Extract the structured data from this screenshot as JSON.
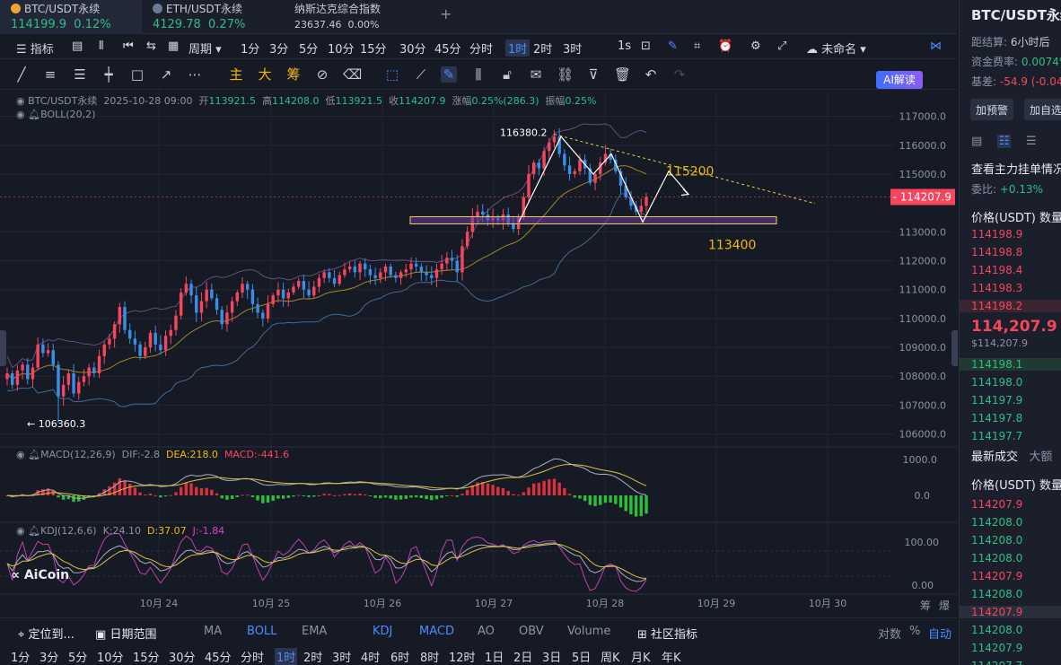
{
  "tabs": [
    {
      "name": "BTC/USDT永续",
      "price": "114199.9",
      "change": "0.12%",
      "color": "#2ebd85"
    },
    {
      "name": "ETH/USDT永续",
      "price": "4129.78",
      "change": "0.27%",
      "color": "#2ebd85"
    },
    {
      "name": "纳斯达克综合指数",
      "price": "23637.46",
      "change": "0.00%",
      "color": "#c8ccd6"
    }
  ],
  "tab_add": "+",
  "toolbar1": {
    "indicator": "指标",
    "period": "周期",
    "intervals": [
      "1分",
      "3分",
      "5分",
      "10分",
      "15分",
      "30分",
      "45分",
      "分时",
      "1时",
      "2时",
      "3时"
    ],
    "selected_interval": "1时",
    "one_s": "1s",
    "unnamed": "未命名",
    "ai": "AI解读"
  },
  "toolbar2": {
    "zhu": "主",
    "da": "大",
    "chou": "筹"
  },
  "info": {
    "symbol": "BTC/USDT永续",
    "datetime": "2025-10-28 09:00",
    "open_label": "开",
    "open": "113921.5",
    "high_label": "高",
    "high": "114208.0",
    "low_label": "低",
    "low": "113921.5",
    "close_label": "收",
    "close": "114207.9",
    "chg_label": "涨幅",
    "chg": "0.25%(286.3)",
    "amp_label": "振幅",
    "amp": "0.25%",
    "boll": "BOLL(20,2)"
  },
  "price_axis": [
    "117000.0",
    "116000.0",
    "115000.0",
    "113000.0",
    "112000.0",
    "111000.0",
    "110000.0",
    "109000.0",
    "108000.0",
    "107000.0",
    "106000.0"
  ],
  "current_price_tag": "114207.9",
  "annotations": {
    "high": "116380.2",
    "low": "← 106360.3",
    "target": "115200",
    "support": "113400"
  },
  "macd": {
    "label": "MACD(12,26,9)",
    "dif": "DIF:-2.8",
    "dea": "DEA:218.0",
    "macd": "MACD:-441.6",
    "axis": [
      "1000.0",
      "0.0"
    ]
  },
  "kdj": {
    "label": "KDJ(12,6,6)",
    "k": "K:24.10",
    "d": "D:37.07",
    "j": "J:-1.84",
    "axis": [
      "100.00",
      "0.00"
    ]
  },
  "dates": [
    "10月 24",
    "10月 25",
    "10月 26",
    "10月 27",
    "10月 28",
    "10月 29",
    "10月 30"
  ],
  "axis_corner": {
    "a": "筹",
    "b": "爆"
  },
  "logo": "AiCoin",
  "bottombar": {
    "locate": "定位到...",
    "range": "日期范围",
    "ma": "MA",
    "boll": "BOLL",
    "ema": "EMA",
    "kdj": "KDJ",
    "macd": "MACD",
    "ao": "AO",
    "obv": "OBV",
    "volume": "Volume",
    "community": "社区指标",
    "log": "对数",
    "pct": "%",
    "auto": "自动"
  },
  "timeframes": [
    "1分",
    "3分",
    "5分",
    "10分",
    "15分",
    "30分",
    "45分",
    "分时",
    "1时",
    "2时",
    "3时",
    "4时",
    "6时",
    "8时",
    "12时",
    "1日",
    "2日",
    "3日",
    "5日",
    "周K",
    "月K",
    "年K"
  ],
  "selected_timeframe": "1时",
  "right_panel": {
    "title": "BTC/USDT永续",
    "settle_label": "距结算:",
    "settle": "6小时后",
    "funding_label": "资金费率:",
    "funding": "0.0074%",
    "basis_label": "基差:",
    "basis": "-54.9 (-0.04",
    "btn_alert": "加预警",
    "btn_fav": "加自选",
    "orderbook_title": "查看主力挂单情况",
    "ratio_label": "委比:",
    "ratio": "+0.13%",
    "header_price": "价格(USDT)",
    "header_qty": "数量",
    "asks": [
      "114198.9",
      "114198.8",
      "114198.4",
      "114198.3",
      "114198.2"
    ],
    "last_price": "114,207.9",
    "last_usd": "$114,207.9",
    "bids": [
      "114198.1",
      "114198.0",
      "114197.9",
      "114197.8",
      "114197.7"
    ],
    "trades_title": "最新成交",
    "trades_tab2": "大额",
    "trades_header": "价格(USDT)",
    "trades_qty": "数量",
    "trades": [
      {
        "p": "114207.9",
        "c": "#f6465d"
      },
      {
        "p": "114208.0",
        "c": "#2ebd85"
      },
      {
        "p": "114208.0",
        "c": "#2ebd85"
      },
      {
        "p": "114208.0",
        "c": "#2ebd85"
      },
      {
        "p": "114207.9",
        "c": "#f6465d"
      },
      {
        "p": "114208.0",
        "c": "#2ebd85"
      },
      {
        "p": "114207.9",
        "c": "#f6465d"
      },
      {
        "p": "114208.0",
        "c": "#2ebd85"
      },
      {
        "p": "114207.9",
        "c": "#2ebd85"
      },
      {
        "p": "114207.7",
        "c": "#2ebd85"
      }
    ]
  },
  "chart_data": {
    "type": "candlestick",
    "title": "BTC/USDT永续",
    "interval": "1时",
    "ylim": [
      105800,
      117300
    ],
    "x": [
      "10月 24",
      "10月 25",
      "10月 26",
      "10月 27",
      "10月 28",
      "10月 29",
      "10月 30"
    ],
    "closes": [
      108100,
      107700,
      108200,
      108400,
      107900,
      108300,
      109100,
      108800,
      108900,
      108400,
      107300,
      107700,
      108100,
      107400,
      107800,
      108000,
      108300,
      108100,
      108700,
      109100,
      109300,
      109800,
      110400,
      109600,
      109300,
      109100,
      108700,
      109000,
      109500,
      109100,
      108900,
      109400,
      109600,
      110100,
      110900,
      111200,
      110800,
      110200,
      110600,
      111000,
      110700,
      110300,
      109800,
      110200,
      110600,
      110900,
      111200,
      111000,
      110500,
      110200,
      110000,
      110500,
      110800,
      111000,
      110700,
      110900,
      111100,
      111300,
      111000,
      110800,
      111100,
      111400,
      111600,
      111400,
      111200,
      111500,
      111700,
      111800,
      111600,
      111900,
      111700,
      111500,
      111400,
      111600,
      111800,
      111500,
      111400,
      111600,
      111700,
      111900,
      111800,
      111600,
      111500,
      111400,
      111700,
      111900,
      112100,
      112000,
      111600,
      112500,
      113000,
      113500,
      113700,
      113600,
      113400,
      113500,
      113400,
      113600,
      113300,
      113100,
      113500,
      114200,
      115000,
      115400,
      115200,
      115800,
      116100,
      116300,
      115700,
      115300,
      115000,
      115100,
      115500,
      115200,
      114700,
      115000,
      115400,
      115700,
      115500,
      115100,
      114600,
      114200,
      113900,
      113700,
      113900,
      114207.9
    ],
    "high": 116380.2,
    "low": 106360.3,
    "current": 114207.9,
    "levels": [
      {
        "price": 115200,
        "label": "115200"
      },
      {
        "price": 113400,
        "label": "113400"
      }
    ]
  }
}
